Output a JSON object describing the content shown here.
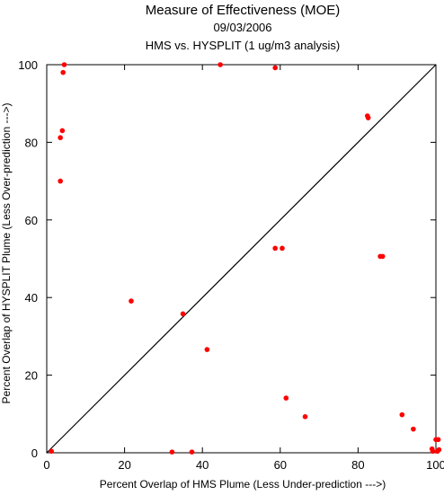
{
  "chart_data": {
    "type": "scatter",
    "title": "Measure of Effectiveness (MOE)",
    "subtitle_date": "09/03/2006",
    "subtitle_analysis": "HMS vs. HYSPLIT  (1 ug/m3 analysis)",
    "xlabel": "Percent Overlap of HMS Plume (Less Under-prediction --->)",
    "ylabel": "Percent Overlap of HYSPLIT Plume (Less Over-prediction --->)",
    "xlim": [
      0,
      100
    ],
    "ylim": [
      0,
      100
    ],
    "xticks": [
      "0",
      "20",
      "40",
      "60",
      "80",
      "100"
    ],
    "yticks": [
      "0",
      "20",
      "40",
      "60",
      "80",
      "100"
    ],
    "grid": false,
    "reference_line": "y = x diagonal",
    "point_color": "#ff0000",
    "points": [
      {
        "x": 4.5,
        "y": 100
      },
      {
        "x": 4.2,
        "y": 98
      },
      {
        "x": 4.0,
        "y": 83
      },
      {
        "x": 3.5,
        "y": 81.2
      },
      {
        "x": 3.5,
        "y": 70
      },
      {
        "x": 1.2,
        "y": 0.4
      },
      {
        "x": 44.6,
        "y": 100
      },
      {
        "x": 58.7,
        "y": 99.2
      },
      {
        "x": 82.4,
        "y": 86.8
      },
      {
        "x": 82.6,
        "y": 86.3
      },
      {
        "x": 58.7,
        "y": 52.7
      },
      {
        "x": 60.5,
        "y": 52.7
      },
      {
        "x": 85.7,
        "y": 50.6
      },
      {
        "x": 86.3,
        "y": 50.6
      },
      {
        "x": 21.7,
        "y": 39.1
      },
      {
        "x": 35.0,
        "y": 35.8
      },
      {
        "x": 41.2,
        "y": 26.6
      },
      {
        "x": 61.5,
        "y": 14.1
      },
      {
        "x": 66.4,
        "y": 9.3
      },
      {
        "x": 91.3,
        "y": 9.8
      },
      {
        "x": 94.2,
        "y": 6.1
      },
      {
        "x": 32.2,
        "y": 0.2
      },
      {
        "x": 37.3,
        "y": 0.2
      },
      {
        "x": 99.0,
        "y": 1.0
      },
      {
        "x": 99.2,
        "y": 0.4
      },
      {
        "x": 100.0,
        "y": 3.4
      },
      {
        "x": 100.6,
        "y": 3.4
      },
      {
        "x": 100.4,
        "y": 0.4
      },
      {
        "x": 100.8,
        "y": 0.8
      }
    ]
  }
}
